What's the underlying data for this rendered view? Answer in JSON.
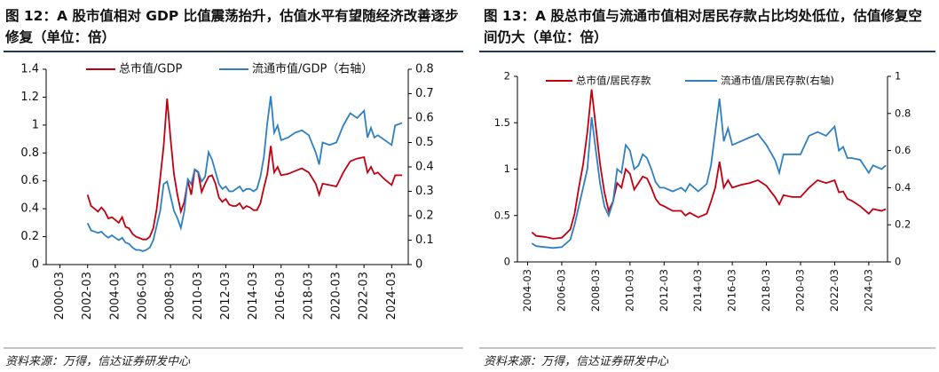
{
  "chart_data": [
    {
      "type": "line",
      "title": "图 12：A 股市值相对 GDP 比值震荡抬升，估值水平有望随经济改善逐步修复（单位：倍）",
      "source": "资料来源：万得，信达证券研发中心",
      "legend": "upper center",
      "x": [
        2002.0,
        2002.25,
        2002.5,
        2002.75,
        2003.0,
        2003.25,
        2003.5,
        2003.75,
        2004.0,
        2004.25,
        2004.5,
        2004.75,
        2005.0,
        2005.25,
        2005.5,
        2005.75,
        2006.0,
        2006.25,
        2006.5,
        2006.75,
        2007.0,
        2007.25,
        2007.5,
        2007.75,
        2008.0,
        2008.25,
        2008.5,
        2008.75,
        2009.0,
        2009.25,
        2009.5,
        2009.75,
        2010.0,
        2010.25,
        2010.5,
        2010.75,
        2011.0,
        2011.25,
        2011.5,
        2011.75,
        2012.0,
        2012.25,
        2012.5,
        2012.75,
        2013.0,
        2013.25,
        2013.5,
        2013.75,
        2014.0,
        2014.25,
        2014.5,
        2014.75,
        2015.0,
        2015.25,
        2015.5,
        2015.75,
        2016.0,
        2016.5,
        2017.0,
        2017.5,
        2018.0,
        2018.5,
        2018.75,
        2019.0,
        2019.5,
        2020.0,
        2020.5,
        2021.0,
        2021.5,
        2022.0,
        2022.25,
        2022.5,
        2022.75,
        2023.0,
        2023.5,
        2024.0,
        2024.25,
        2024.75
      ],
      "xlim": [
        1999,
        2025.2
      ],
      "xticks": [
        {
          "value": 2000,
          "label": "2000-03"
        },
        {
          "value": 2002,
          "label": "2002-03"
        },
        {
          "value": 2004,
          "label": "2004-03"
        },
        {
          "value": 2006,
          "label": "2006-03"
        },
        {
          "value": 2008,
          "label": "2008-03"
        },
        {
          "value": 2010,
          "label": "2010-03"
        },
        {
          "value": 2012,
          "label": "2012-03"
        },
        {
          "value": 2014,
          "label": "2014-03"
        },
        {
          "value": 2016,
          "label": "2016-03"
        },
        {
          "value": 2018,
          "label": "2018-03"
        },
        {
          "value": 2020,
          "label": "2020-03"
        },
        {
          "value": 2022,
          "label": "2022-03"
        },
        {
          "value": 2024,
          "label": "2024-03"
        }
      ],
      "ylim": [
        0,
        1.4
      ],
      "yticks": [
        0,
        0.2,
        0.4,
        0.6,
        0.8,
        1,
        1.2,
        1.4
      ],
      "y2lim": [
        0,
        0.8
      ],
      "y2ticks": [
        0,
        0.1,
        0.2,
        0.3,
        0.4,
        0.5,
        0.6,
        0.7,
        0.8
      ],
      "series": [
        {
          "name": "总市值/GDP",
          "color": "#c0000f",
          "values": [
            0.5,
            0.42,
            0.4,
            0.38,
            0.41,
            0.38,
            0.33,
            0.34,
            0.32,
            0.3,
            0.34,
            0.27,
            0.26,
            0.22,
            0.2,
            0.19,
            0.18,
            0.18,
            0.2,
            0.26,
            0.4,
            0.62,
            0.85,
            1.19,
            0.9,
            0.65,
            0.5,
            0.38,
            0.45,
            0.6,
            0.5,
            0.68,
            0.66,
            0.52,
            0.58,
            0.63,
            0.64,
            0.58,
            0.48,
            0.45,
            0.47,
            0.43,
            0.42,
            0.42,
            0.44,
            0.4,
            0.42,
            0.41,
            0.39,
            0.39,
            0.44,
            0.55,
            0.65,
            0.85,
            0.66,
            0.7,
            0.64,
            0.65,
            0.67,
            0.69,
            0.66,
            0.58,
            0.5,
            0.58,
            0.57,
            0.56,
            0.66,
            0.74,
            0.76,
            0.77,
            0.66,
            0.7,
            0.65,
            0.66,
            0.61,
            0.57,
            0.64,
            0.64
          ]
        },
        {
          "name": "流通市值/GDP（右轴）",
          "color": "#2f7fc1",
          "axis": "y2",
          "values": [
            0.17,
            0.14,
            0.135,
            0.13,
            0.135,
            0.12,
            0.11,
            0.12,
            0.11,
            0.1,
            0.11,
            0.09,
            0.085,
            0.07,
            0.06,
            0.06,
            0.055,
            0.06,
            0.07,
            0.1,
            0.16,
            0.22,
            0.33,
            0.34,
            0.28,
            0.22,
            0.19,
            0.15,
            0.22,
            0.35,
            0.33,
            0.39,
            0.38,
            0.34,
            0.36,
            0.46,
            0.43,
            0.38,
            0.33,
            0.31,
            0.32,
            0.3,
            0.3,
            0.31,
            0.32,
            0.3,
            0.31,
            0.31,
            0.3,
            0.31,
            0.36,
            0.44,
            0.58,
            0.69,
            0.54,
            0.57,
            0.51,
            0.52,
            0.54,
            0.55,
            0.53,
            0.46,
            0.41,
            0.5,
            0.49,
            0.5,
            0.57,
            0.62,
            0.6,
            0.63,
            0.52,
            0.56,
            0.52,
            0.53,
            0.51,
            0.49,
            0.57,
            0.58
          ]
        }
      ]
    },
    {
      "type": "line",
      "title": "图 13：A 股总市值与流通市值相对居民存款占比均处低位，估值修复空间仍大（单位：倍）",
      "source": "资料来源：万得，信达证券研发中心",
      "legend": "upper center",
      "x": [
        2004.25,
        2004.5,
        2005.0,
        2005.5,
        2006.0,
        2006.5,
        2006.75,
        2007.0,
        2007.25,
        2007.5,
        2007.75,
        2008.0,
        2008.25,
        2008.5,
        2008.75,
        2009.0,
        2009.25,
        2009.5,
        2009.75,
        2010.0,
        2010.25,
        2010.5,
        2010.75,
        2011.0,
        2011.25,
        2011.5,
        2011.75,
        2012.0,
        2012.5,
        2013.0,
        2013.25,
        2013.5,
        2014.0,
        2014.5,
        2014.75,
        2015.0,
        2015.25,
        2015.5,
        2015.75,
        2016.0,
        2016.5,
        2017.0,
        2017.5,
        2018.0,
        2018.5,
        2018.75,
        2019.0,
        2019.5,
        2020.0,
        2020.5,
        2021.0,
        2021.5,
        2022.0,
        2022.25,
        2022.5,
        2022.75,
        2023.0,
        2023.5,
        2024.0,
        2024.25,
        2024.75,
        2025.0
      ],
      "xlim": [
        2003.4,
        2025.1
      ],
      "xticks": [
        {
          "value": 2004,
          "label": "2004-03"
        },
        {
          "value": 2006,
          "label": "2006-03"
        },
        {
          "value": 2008,
          "label": "2008-03"
        },
        {
          "value": 2010,
          "label": "2010-03"
        },
        {
          "value": 2012,
          "label": "2012-03"
        },
        {
          "value": 2014,
          "label": "2014-03"
        },
        {
          "value": 2016,
          "label": "2016-03"
        },
        {
          "value": 2018,
          "label": "2018-03"
        },
        {
          "value": 2020,
          "label": "2020-03"
        },
        {
          "value": 2022,
          "label": "2022-03"
        },
        {
          "value": 2024,
          "label": "2024-03"
        }
      ],
      "ylim": [
        0,
        2
      ],
      "yticks": [
        0,
        0.5,
        1,
        1.5,
        2
      ],
      "y2lim": [
        0,
        1
      ],
      "y2ticks": [
        0,
        0.2,
        0.4,
        0.6,
        0.8,
        1
      ],
      "series": [
        {
          "name": "总市值/居民存款",
          "color": "#c0000f",
          "values": [
            0.32,
            0.28,
            0.27,
            0.25,
            0.26,
            0.35,
            0.52,
            0.8,
            1.05,
            1.4,
            1.86,
            1.45,
            1.05,
            0.75,
            0.55,
            0.65,
            0.85,
            0.8,
            1.0,
            0.95,
            0.78,
            0.85,
            0.92,
            0.9,
            0.8,
            0.68,
            0.62,
            0.6,
            0.55,
            0.55,
            0.5,
            0.53,
            0.48,
            0.52,
            0.65,
            0.8,
            1.08,
            0.8,
            0.88,
            0.8,
            0.83,
            0.85,
            0.88,
            0.82,
            0.7,
            0.62,
            0.72,
            0.7,
            0.7,
            0.8,
            0.88,
            0.85,
            0.88,
            0.75,
            0.76,
            0.68,
            0.66,
            0.6,
            0.52,
            0.57,
            0.55,
            0.57
          ]
        },
        {
          "name": "流通市值/居民存款(右轴)",
          "color": "#2f7fc1",
          "axis": "y2",
          "values": [
            0.1,
            0.085,
            0.08,
            0.075,
            0.08,
            0.12,
            0.2,
            0.3,
            0.4,
            0.5,
            0.78,
            0.6,
            0.42,
            0.3,
            0.25,
            0.32,
            0.5,
            0.48,
            0.63,
            0.6,
            0.5,
            0.52,
            0.58,
            0.56,
            0.5,
            0.43,
            0.4,
            0.4,
            0.38,
            0.4,
            0.38,
            0.42,
            0.38,
            0.42,
            0.52,
            0.7,
            0.88,
            0.65,
            0.72,
            0.63,
            0.65,
            0.67,
            0.69,
            0.63,
            0.55,
            0.48,
            0.58,
            0.58,
            0.58,
            0.68,
            0.7,
            0.68,
            0.73,
            0.6,
            0.62,
            0.56,
            0.56,
            0.55,
            0.48,
            0.52,
            0.5,
            0.52
          ]
        }
      ]
    }
  ]
}
